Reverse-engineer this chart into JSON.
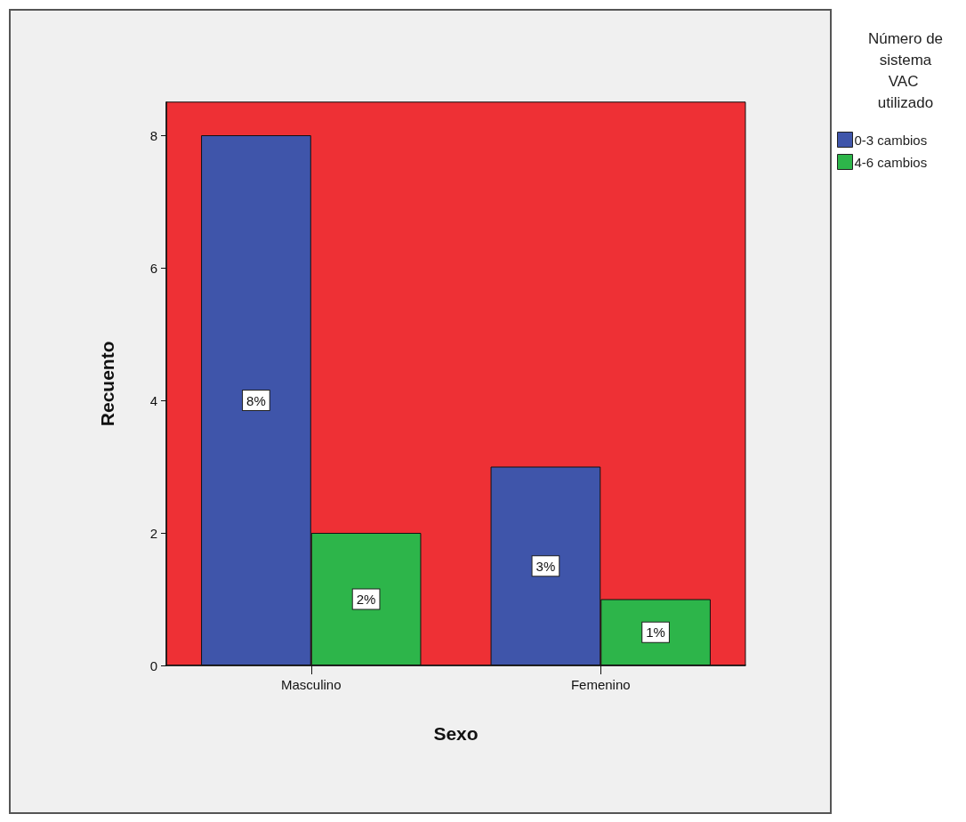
{
  "chart_data": {
    "type": "bar",
    "categories": [
      "Masculino",
      "Femenino"
    ],
    "series": [
      {
        "name": "0-3 cambios",
        "color": "#3f55aa",
        "values": [
          8,
          3
        ],
        "value_labels": [
          "8%",
          "3%"
        ]
      },
      {
        "name": "4-6 cambios",
        "color": "#2db54a",
        "values": [
          2,
          1
        ],
        "value_labels": [
          "2%",
          "1%"
        ]
      }
    ],
    "xlabel": "Sexo",
    "ylabel": "Recuento",
    "legend_title": "Número de sistema VAC utilizado",
    "ylim": [
      0,
      8.5
    ],
    "yticks": [
      0,
      2,
      4,
      6,
      8
    ],
    "grid": false,
    "legend": "top right"
  }
}
